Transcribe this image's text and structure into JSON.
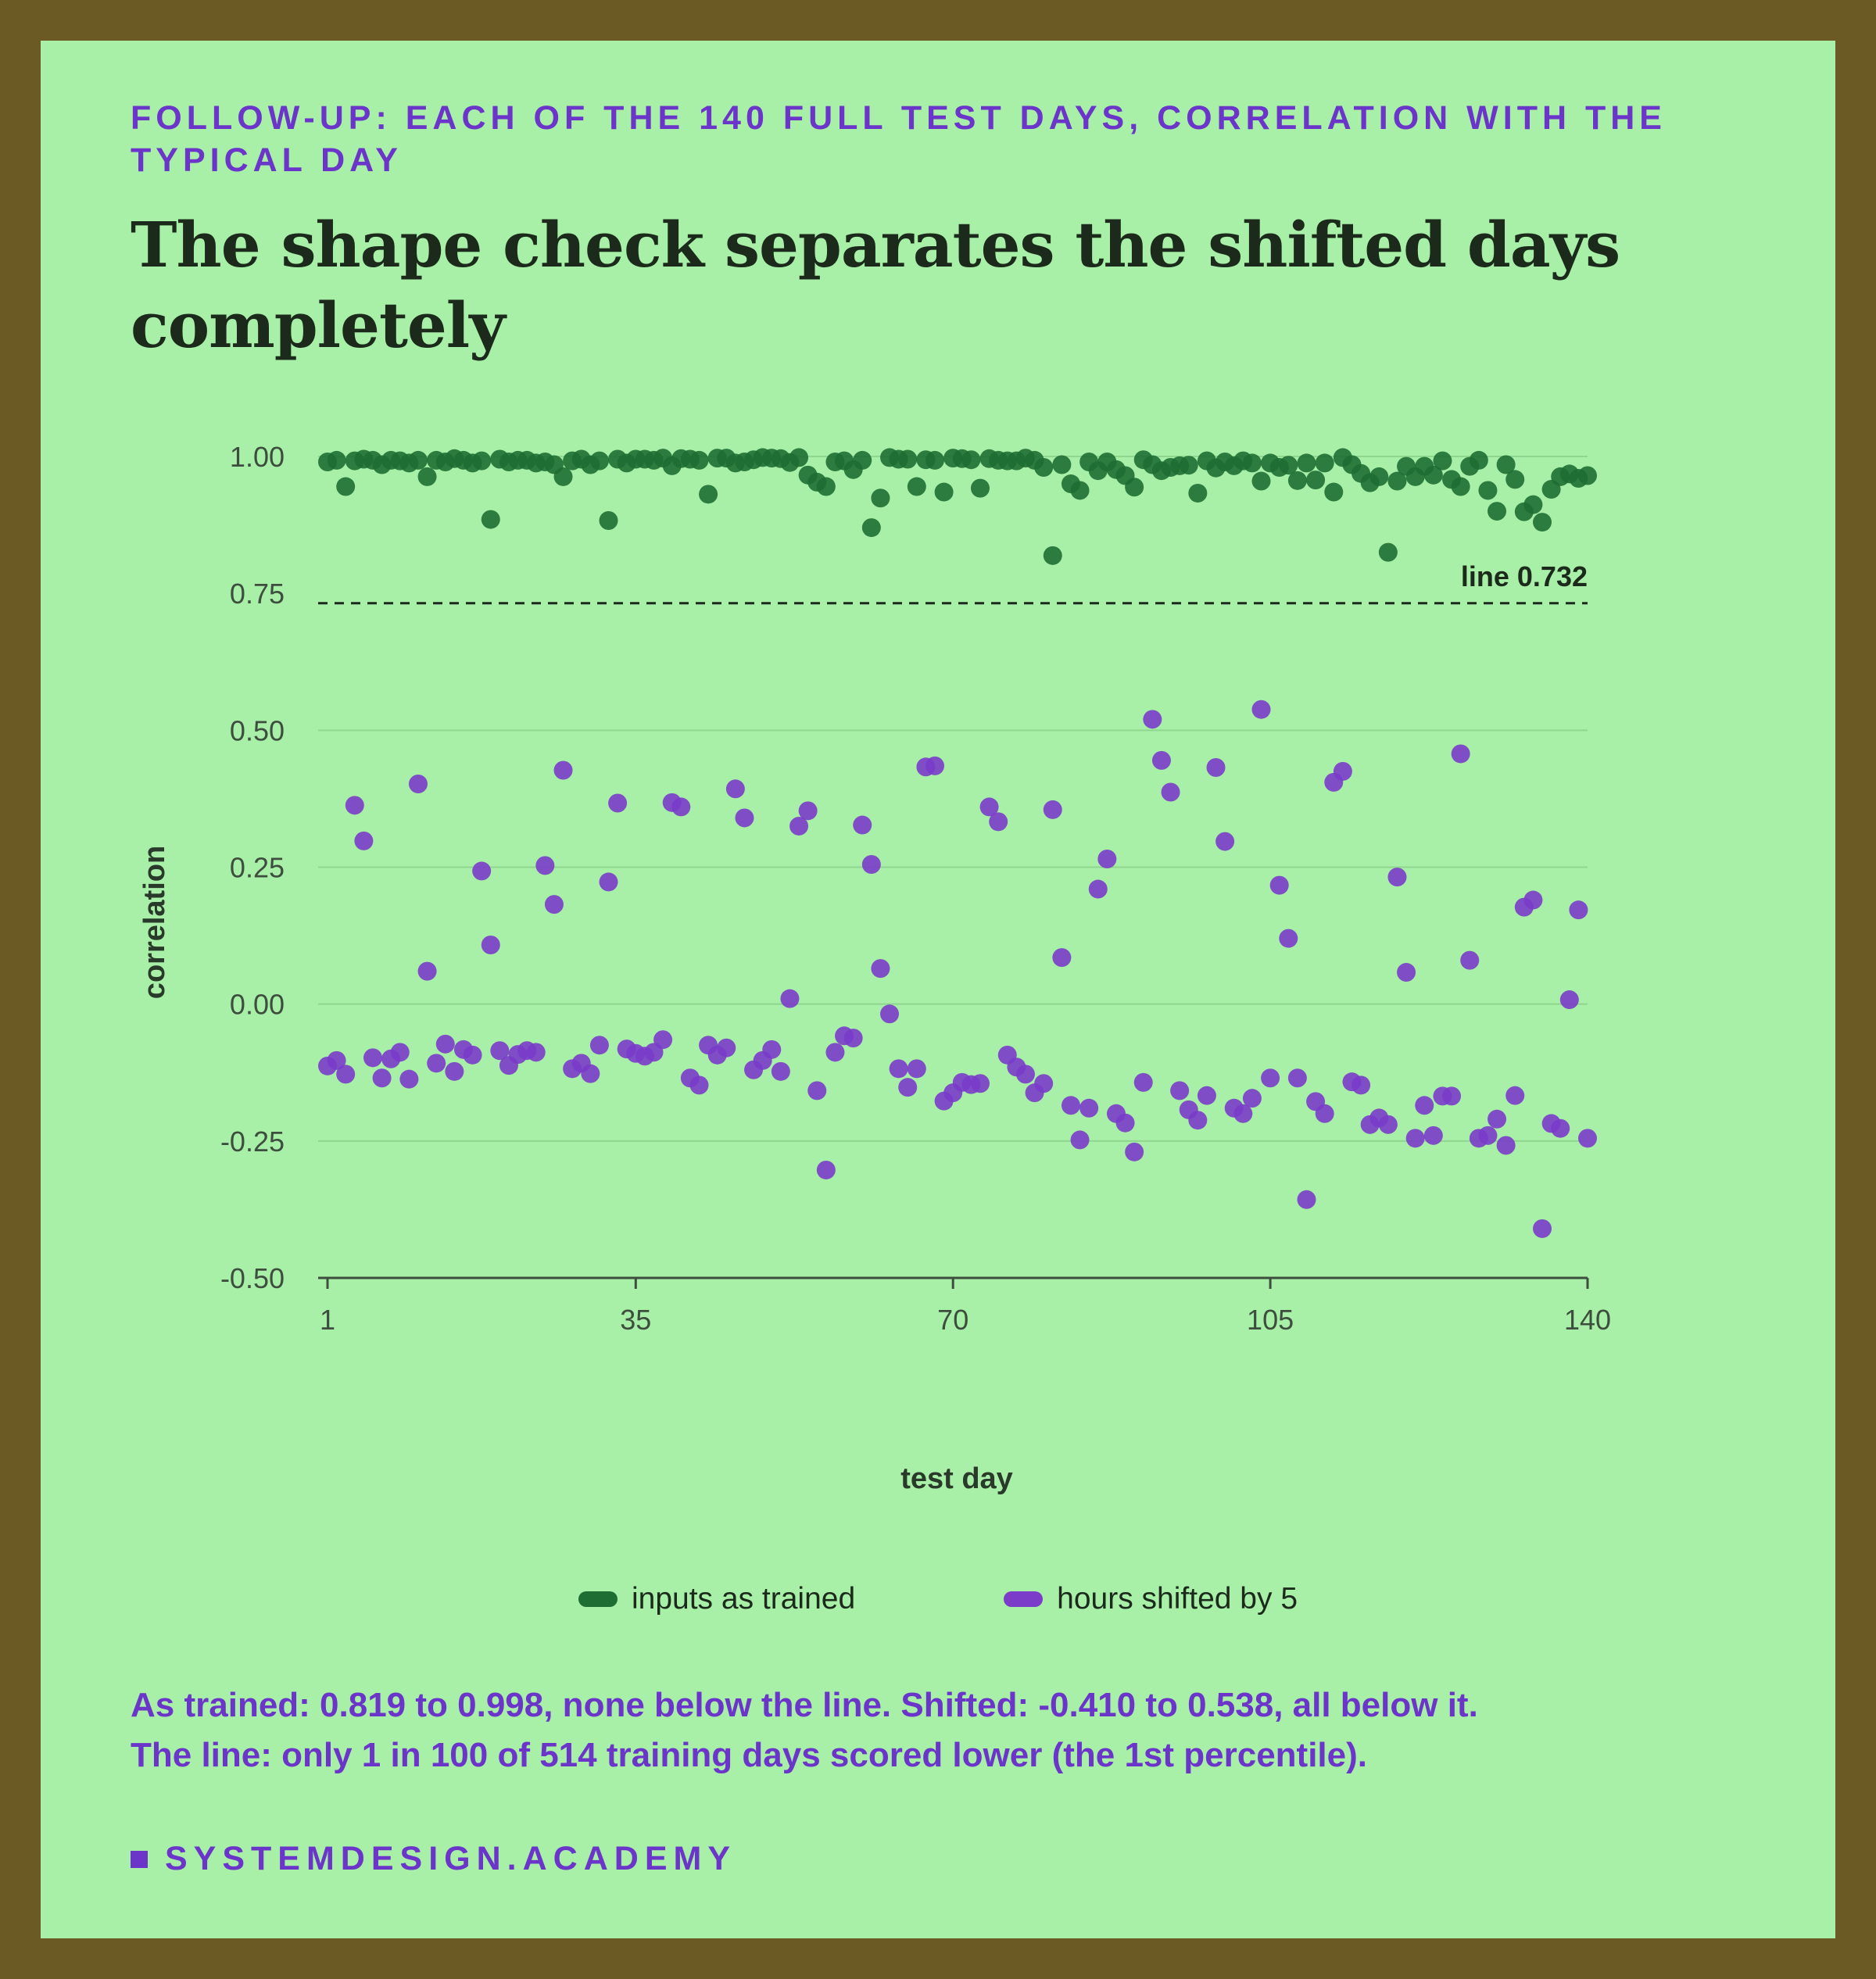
{
  "header": {
    "kicker": "FOLLOW-UP: EACH OF THE 140 FULL TEST DAYS, CORRELATION WITH THE TYPICAL DAY",
    "title": "The shape check separates the shifted days completely"
  },
  "chart_data": {
    "type": "scatter",
    "xlabel": "test day",
    "ylabel": "correlation",
    "xlim": [
      1,
      140
    ],
    "ylim": [
      -0.5,
      1.0
    ],
    "x_ticks": [
      1,
      35,
      70,
      105,
      140
    ],
    "y_ticks": [
      -0.5,
      -0.25,
      0.0,
      0.25,
      0.5,
      0.75,
      1.0
    ],
    "y_tick_labels": [
      "-0.50",
      "-0.25",
      "0.00",
      "0.25",
      "0.50",
      "0.75",
      "1.00"
    ],
    "grid": "horizontal",
    "threshold": {
      "value": 0.732,
      "label": "line 0.732"
    },
    "x": [
      1,
      2,
      3,
      4,
      5,
      6,
      7,
      8,
      9,
      10,
      11,
      12,
      13,
      14,
      15,
      16,
      17,
      18,
      19,
      20,
      21,
      22,
      23,
      24,
      25,
      26,
      27,
      28,
      29,
      30,
      31,
      32,
      33,
      34,
      35,
      36,
      37,
      38,
      39,
      40,
      41,
      42,
      43,
      44,
      45,
      46,
      47,
      48,
      49,
      50,
      51,
      52,
      53,
      54,
      55,
      56,
      57,
      58,
      59,
      60,
      61,
      62,
      63,
      64,
      65,
      66,
      67,
      68,
      69,
      70,
      71,
      72,
      73,
      74,
      75,
      76,
      77,
      78,
      79,
      80,
      81,
      82,
      83,
      84,
      85,
      86,
      87,
      88,
      89,
      90,
      91,
      92,
      93,
      94,
      95,
      96,
      97,
      98,
      99,
      100,
      101,
      102,
      103,
      104,
      105,
      106,
      107,
      108,
      109,
      110,
      111,
      112,
      113,
      114,
      115,
      116,
      117,
      118,
      119,
      120,
      121,
      122,
      123,
      124,
      125,
      126,
      127,
      128,
      129,
      130,
      131,
      132,
      133,
      134,
      135,
      136,
      137,
      138,
      139,
      140
    ],
    "series": [
      {
        "name": "inputs as trained",
        "color": "#1e6e33",
        "values": [
          0.99,
          0.993,
          0.945,
          0.992,
          0.995,
          0.993,
          0.985,
          0.993,
          0.992,
          0.988,
          0.993,
          0.963,
          0.993,
          0.99,
          0.996,
          0.993,
          0.988,
          0.992,
          0.885,
          0.995,
          0.99,
          0.993,
          0.993,
          0.988,
          0.99,
          0.985,
          0.963,
          0.992,
          0.995,
          0.985,
          0.992,
          0.883,
          0.995,
          0.988,
          0.995,
          0.995,
          0.993,
          0.997,
          0.983,
          0.996,
          0.995,
          0.993,
          0.931,
          0.997,
          0.997,
          0.988,
          0.99,
          0.994,
          0.998,
          0.997,
          0.996,
          0.989,
          0.998,
          0.966,
          0.953,
          0.945,
          0.99,
          0.992,
          0.976,
          0.993,
          0.87,
          0.924,
          0.998,
          0.995,
          0.995,
          0.945,
          0.994,
          0.993,
          0.935,
          0.997,
          0.996,
          0.994,
          0.942,
          0.996,
          0.993,
          0.992,
          0.992,
          0.997,
          0.993,
          0.98,
          0.819,
          0.985,
          0.95,
          0.938,
          0.99,
          0.974,
          0.99,
          0.976,
          0.965,
          0.944,
          0.994,
          0.985,
          0.974,
          0.98,
          0.983,
          0.984,
          0.933,
          0.992,
          0.979,
          0.99,
          0.983,
          0.992,
          0.988,
          0.955,
          0.988,
          0.98,
          0.984,
          0.956,
          0.988,
          0.957,
          0.988,
          0.935,
          0.998,
          0.985,
          0.969,
          0.952,
          0.963,
          0.825,
          0.955,
          0.982,
          0.963,
          0.982,
          0.966,
          0.992,
          0.958,
          0.945,
          0.982,
          0.993,
          0.938,
          0.9,
          0.985,
          0.958,
          0.899,
          0.912,
          0.88,
          0.94,
          0.963,
          0.968,
          0.96,
          0.965
        ]
      },
      {
        "name": "hours shifted by 5",
        "color": "#7a3cc9",
        "values": [
          -0.113,
          -0.103,
          -0.128,
          0.363,
          0.298,
          -0.098,
          -0.135,
          -0.1,
          -0.088,
          -0.137,
          0.402,
          0.06,
          -0.108,
          -0.073,
          -0.123,
          -0.083,
          -0.093,
          0.243,
          0.108,
          -0.085,
          -0.112,
          -0.092,
          -0.085,
          -0.088,
          0.253,
          0.182,
          0.427,
          -0.118,
          -0.108,
          -0.127,
          -0.075,
          0.223,
          0.367,
          -0.082,
          -0.09,
          -0.095,
          -0.088,
          -0.065,
          0.368,
          0.36,
          -0.135,
          -0.148,
          -0.075,
          -0.093,
          -0.08,
          0.393,
          0.34,
          -0.12,
          -0.103,
          -0.083,
          -0.123,
          0.01,
          0.325,
          0.353,
          -0.158,
          -0.303,
          -0.088,
          -0.058,
          -0.062,
          0.327,
          0.255,
          0.065,
          -0.018,
          -0.118,
          -0.152,
          -0.118,
          0.433,
          0.435,
          -0.177,
          -0.162,
          -0.143,
          -0.147,
          -0.145,
          0.36,
          0.333,
          -0.093,
          -0.115,
          -0.128,
          -0.162,
          -0.145,
          0.355,
          0.085,
          -0.185,
          -0.248,
          -0.19,
          0.21,
          0.265,
          -0.2,
          -0.217,
          -0.27,
          -0.143,
          0.52,
          0.445,
          0.387,
          -0.158,
          -0.193,
          -0.212,
          -0.167,
          0.432,
          0.297,
          -0.19,
          -0.2,
          -0.172,
          0.538,
          -0.135,
          0.217,
          0.12,
          -0.135,
          -0.357,
          -0.178,
          -0.2,
          0.405,
          0.425,
          -0.142,
          -0.148,
          -0.22,
          -0.208,
          -0.22,
          0.232,
          0.058,
          -0.245,
          -0.185,
          -0.24,
          -0.168,
          -0.168,
          0.457,
          0.08,
          -0.245,
          -0.24,
          -0.21,
          -0.258,
          -0.167,
          0.177,
          0.19,
          -0.41,
          -0.218,
          -0.227,
          0.008,
          0.172,
          -0.245
        ]
      }
    ]
  },
  "legend": {
    "trained_label": "inputs as trained",
    "shifted_label": "hours shifted by 5"
  },
  "notes": {
    "line1": "As trained: 0.819 to 0.998, none below the line. Shifted: -0.410 to 0.538, all below it.",
    "line2": "The line: only 1 in 100 of 514 training days scored lower (the 1st percentile)."
  },
  "brand": {
    "name": "SYSTEMDESIGN.ACADEMY",
    "color": "#6c35c9"
  }
}
